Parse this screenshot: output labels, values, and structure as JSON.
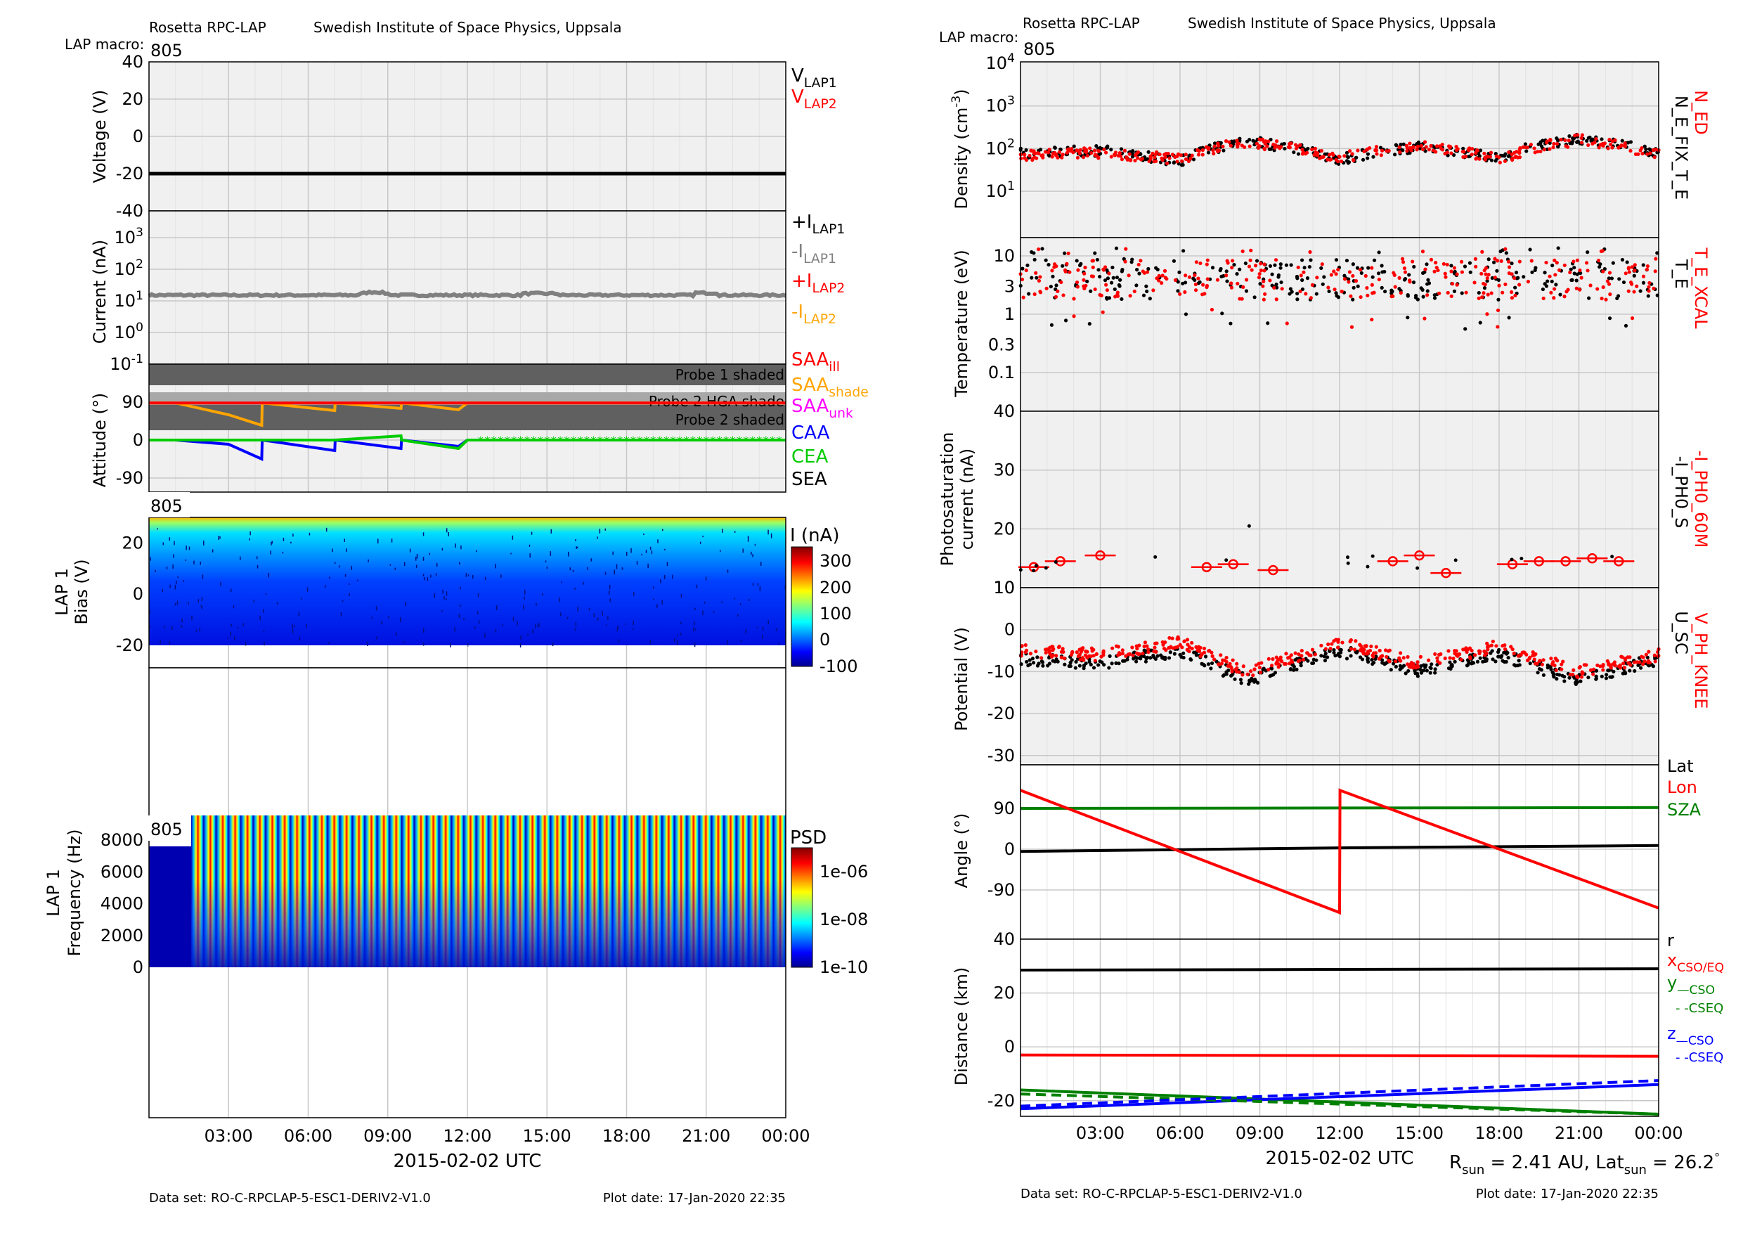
{
  "colors": {
    "red": "#ff0000",
    "black": "#000000",
    "gray": "#808080",
    "orange": "#ffa500",
    "magenta": "#ff00ff",
    "blue": "#0000ff",
    "green": "#00cc00",
    "darkgreen": "#008000",
    "panel_bg": "#f0f0f0",
    "shade": "#606060"
  },
  "left": {
    "header": {
      "instrument": "Rosetta RPC-LAP",
      "institute": "Swedish Institute of Space Physics, Uppsala",
      "macro_label": "LAP macro:",
      "macro_value": "805"
    },
    "time_ticks": [
      "03:00",
      "06:00",
      "09:00",
      "12:00",
      "15:00",
      "18:00",
      "21:00",
      "00:00"
    ],
    "xlabel": "2015-02-02 UTC",
    "footer": {
      "dataset": "Data set: RO-C-RPCLAP-5-ESC1-DERIV2-V1.0",
      "plotdate": "Plot date: 17-Jan-2020 22:35"
    },
    "voltage": {
      "ylabel": "Voltage (V)",
      "ticks": [
        "40",
        "20",
        "0",
        "-20",
        "-40"
      ],
      "legend": [
        {
          "base": "V",
          "sub": "LAP1"
        },
        {
          "base": "V",
          "sub": "LAP2"
        }
      ]
    },
    "current": {
      "ylabel": "Current (nA)",
      "ticks": [
        {
          "base": "10",
          "exp": "3"
        },
        {
          "base": "10",
          "exp": "2"
        },
        {
          "base": "10",
          "exp": "1"
        },
        {
          "base": "10",
          "exp": "0"
        },
        {
          "base": "10",
          "exp": "-1"
        }
      ],
      "legend": [
        {
          "base": "+I",
          "sub": "LAP1"
        },
        {
          "base": "-I",
          "sub": "LAP1"
        },
        {
          "base": "+I",
          "sub": "LAP2"
        },
        {
          "base": "-I",
          "sub": "LAP2"
        }
      ]
    },
    "attitude": {
      "ylabel": "Attitude (°)",
      "ticks": [
        "90",
        "0",
        "-90"
      ],
      "shade1": "Probe 1 shaded",
      "shade2": "Probe 2 HGA shade",
      "shade3": "Probe 2 shaded",
      "legend": [
        {
          "base": "SAA",
          "sub": "ill"
        },
        {
          "base": "SAA",
          "sub": "shade"
        },
        {
          "base": "SAA",
          "sub": "unk"
        },
        {
          "base": "CAA",
          "sub": ""
        },
        {
          "base": "CEA",
          "sub": ""
        },
        {
          "base": "SEA",
          "sub": ""
        }
      ]
    },
    "sweep": {
      "macro": "805",
      "ylabel1": "LAP 1",
      "ylabel2": "Bias (V)",
      "ticks": [
        "20",
        "0",
        "-20"
      ],
      "cbar_title": "I (nA)",
      "cbar_ticks": [
        "300",
        "200",
        "100",
        "0",
        "-100"
      ]
    },
    "psd": {
      "macro": "805",
      "ylabel1": "LAP 1",
      "ylabel2": "Frequency (Hz)",
      "ticks": [
        "8000",
        "6000",
        "4000",
        "2000",
        "0"
      ],
      "cbar_title": "PSD",
      "cbar_ticks": [
        "1e-06",
        "1e-08",
        "1e-10"
      ]
    }
  },
  "right": {
    "header": {
      "instrument": "Rosetta RPC-LAP",
      "institute": "Swedish Institute of Space Physics, Uppsala",
      "macro_label": "LAP macro:",
      "macro_value": "805"
    },
    "time_ticks": [
      "03:00",
      "06:00",
      "09:00",
      "12:00",
      "15:00",
      "18:00",
      "21:00",
      "00:00"
    ],
    "xlabel": "2015-02-02 UTC",
    "rsun_text": "R",
    "rsun_sub": "sun",
    "rsun_val": " = 2.41 AU, Lat",
    "lat_sub": "sun",
    "lat_val": " = 26.2",
    "footer": {
      "dataset": "Data set: RO-C-RPCLAP-5-ESC1-DERIV2-V1.0",
      "plotdate": "Plot date: 17-Jan-2020 22:35"
    },
    "density": {
      "ylabel": "Density (cm",
      "ylabel_exp": "-3",
      "ylabel_end": ")",
      "ticks": [
        {
          "base": "10",
          "exp": "4"
        },
        {
          "base": "10",
          "exp": "3"
        },
        {
          "base": "10",
          "exp": "2"
        },
        {
          "base": "10",
          "exp": "1"
        }
      ],
      "legend": [
        "N_ED",
        "N_E_FIX_T_E"
      ]
    },
    "temperature": {
      "ylabel": "Temperature (eV)",
      "ticks": [
        "10",
        "3",
        "1",
        "0.3",
        "0.1"
      ],
      "legend": [
        "T_E_XCAL",
        "T_E"
      ]
    },
    "photo": {
      "ylabel1": "Photosaturation",
      "ylabel2": "current (nA)",
      "ticks": [
        "40",
        "30",
        "20",
        "10"
      ],
      "legend": [
        "-I_PH0_60M",
        "-I_PH0_S"
      ]
    },
    "potential": {
      "ylabel": "Potential (V)",
      "ticks": [
        "10",
        "0",
        "-10",
        "-20",
        "-30"
      ],
      "legend": [
        "V_PH_KNEE",
        "U_SC"
      ]
    },
    "angle": {
      "ylabel": "Angle (°)",
      "ticks": [
        "90",
        "0",
        "-90"
      ],
      "legend": [
        "Lat",
        "Lon",
        "SZA"
      ]
    },
    "distance": {
      "ylabel": "Distance (km)",
      "ticks": [
        "40",
        "20",
        "0",
        "-20"
      ],
      "legend": {
        "r": "r",
        "x": "x",
        "x_sub": "CSO/EQ",
        "y": "y",
        "y_sub": "—CSO",
        "y2": "- -CSEQ",
        "z": "z",
        "z_sub": "—CSO",
        "z2": "- -CSEQ"
      }
    }
  },
  "chart_data": [
    {
      "type": "line",
      "title": "Voltage",
      "ylabel": "Voltage (V)",
      "ylim": [
        -40,
        40
      ],
      "x": [
        "00:00",
        "24:00"
      ],
      "series": [
        {
          "name": "V_LAP1",
          "values": [
            -20,
            -20
          ]
        }
      ]
    },
    {
      "type": "line",
      "title": "Current",
      "ylabel": "Current (nA)",
      "yscale": "log",
      "ylim": [
        0.1,
        3000
      ],
      "x": [
        "00:00",
        "03:00",
        "06:00",
        "08:30",
        "12:00",
        "15:00",
        "18:00",
        "21:00",
        "24:00"
      ],
      "series": [
        {
          "name": "-I_LAP1",
          "values": [
            15,
            15,
            15,
            18,
            15,
            16,
            15,
            17,
            15
          ]
        }
      ]
    },
    {
      "type": "line",
      "title": "Attitude",
      "ylabel": "Attitude (°)",
      "ylim": [
        -140,
        140
      ],
      "x": [
        "00:00",
        "01:00",
        "03:00",
        "04:15",
        "04:16",
        "07:00",
        "07:01",
        "09:30",
        "09:31",
        "11:40",
        "12:00",
        "24:00"
      ],
      "series": [
        {
          "name": "SAA_ill",
          "values": [
            88,
            88,
            88,
            88,
            88,
            88,
            88,
            88,
            88,
            88,
            88,
            88
          ]
        },
        {
          "name": "SAA_shade",
          "values": [
            88,
            88,
            60,
            35,
            88,
            70,
            88,
            75,
            88,
            72,
            88,
            88
          ]
        },
        {
          "name": "CAA",
          "values": [
            0,
            0,
            -10,
            -45,
            0,
            -25,
            0,
            -20,
            0,
            -15,
            0,
            0
          ]
        },
        {
          "name": "CEA",
          "values": [
            0,
            0,
            0,
            0,
            0,
            0,
            0,
            10,
            0,
            -20,
            0,
            0
          ]
        }
      ]
    },
    {
      "type": "heatmap",
      "title": "LAP 1 sweep",
      "ylabel": "Bias (V)",
      "ylim": [
        -20,
        30
      ],
      "colorbar": "I (nA)",
      "clim": [
        -100,
        300
      ]
    },
    {
      "type": "heatmap",
      "title": "LAP 1 PSD",
      "ylabel": "Frequency (Hz)",
      "ylim": [
        0,
        9500
      ],
      "colorbar": "PSD",
      "clim": [
        "1e-10",
        "1e-06"
      ]
    },
    {
      "type": "scatter",
      "title": "Density",
      "ylabel": "Density (cm^-3)",
      "yscale": "log",
      "ylim": [
        10,
        10000
      ],
      "x": [
        "00:00",
        "03:00",
        "06:00",
        "08:30",
        "12:00",
        "15:00",
        "18:00",
        "21:00",
        "24:00"
      ],
      "series": [
        {
          "name": "N_ED",
          "values": [
            70,
            80,
            55,
            140,
            60,
            120,
            55,
            160,
            70
          ]
        },
        {
          "name": "N_E_FIX_T_E",
          "values": [
            80,
            90,
            50,
            150,
            55,
            110,
            60,
            170,
            75
          ]
        }
      ]
    },
    {
      "type": "scatter",
      "title": "Temperature",
      "ylabel": "Temperature (eV)",
      "yscale": "log",
      "ylim": [
        0.05,
        15
      ],
      "x": [
        "00:00",
        "03:00",
        "06:00",
        "09:00",
        "12:00",
        "15:00",
        "18:00",
        "21:00",
        "24:00"
      ],
      "series": [
        {
          "name": "T_E_XCAL",
          "values": [
            4,
            5,
            4,
            6,
            4,
            5,
            4,
            6,
            5
          ]
        },
        {
          "name": "T_E",
          "values": [
            4,
            3,
            5,
            4,
            3,
            4,
            5,
            4,
            5
          ]
        }
      ]
    },
    {
      "type": "scatter",
      "title": "Photosaturation current",
      "ylabel": "current (nA)",
      "ylim": [
        10,
        40
      ],
      "x": [
        "00:30",
        "01:30",
        "03:00",
        "07:00",
        "08:00",
        "09:30",
        "14:00",
        "15:00",
        "16:00",
        "18:30",
        "19:30",
        "20:30",
        "21:30",
        "22:30"
      ],
      "series": [
        {
          "name": "-I_PH0_60M",
          "values": [
            13.5,
            14.5,
            15.5,
            13.5,
            14,
            13,
            14.5,
            15.5,
            12.5,
            14,
            14.5,
            14.5,
            15,
            14.5
          ]
        }
      ]
    },
    {
      "type": "scatter",
      "title": "Potential",
      "ylabel": "Potential (V)",
      "ylim": [
        -32,
        10
      ],
      "x": [
        "00:00",
        "03:00",
        "06:00",
        "08:30",
        "12:00",
        "15:00",
        "18:00",
        "21:00",
        "24:00"
      ],
      "series": [
        {
          "name": "V_PH_KNEE",
          "values": [
            -5,
            -6,
            -3,
            -10,
            -3,
            -8,
            -4,
            -10,
            -6
          ]
        },
        {
          "name": "U_SC",
          "values": [
            -7,
            -8,
            -5,
            -12,
            -5,
            -10,
            -6,
            -12,
            -7
          ]
        }
      ]
    },
    {
      "type": "line",
      "title": "Angle",
      "ylabel": "Angle (°)",
      "ylim": [
        -150,
        150
      ],
      "x": [
        "00:00",
        "12:00",
        "12:01",
        "24:00"
      ],
      "series": [
        {
          "name": "Lat",
          "values": [
            -5,
            3,
            3,
            8
          ]
        },
        {
          "name": "Lon",
          "values": [
            130,
            -140,
            130,
            -130
          ]
        },
        {
          "name": "SZA",
          "values": [
            90,
            91,
            91,
            92
          ]
        }
      ]
    },
    {
      "type": "line",
      "title": "Distance",
      "ylabel": "Distance (km)",
      "ylim": [
        -25,
        40
      ],
      "x": [
        "00:00",
        "24:00"
      ],
      "series": [
        {
          "name": "r",
          "values": [
            28.5,
            29
          ]
        },
        {
          "name": "x",
          "values": [
            -3,
            -3.5
          ]
        },
        {
          "name": "y",
          "values": [
            -16,
            -25
          ]
        },
        {
          "name": "z",
          "values": [
            -23,
            -14
          ]
        }
      ]
    }
  ]
}
